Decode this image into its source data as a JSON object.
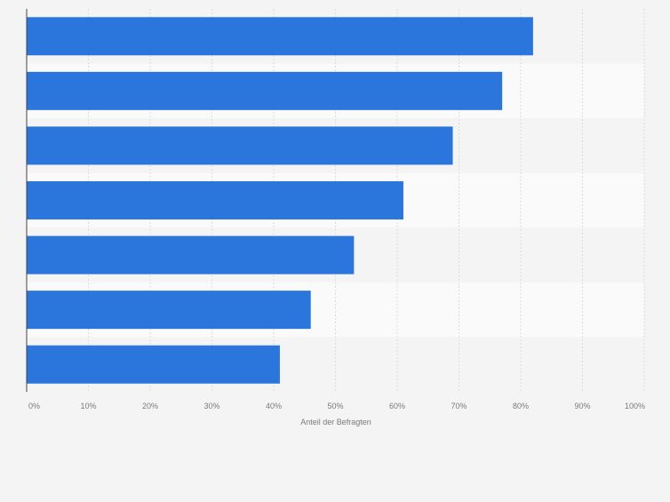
{
  "chart_data": {
    "type": "bar",
    "orientation": "horizontal",
    "categories": [
      "",
      "",
      "",
      "",
      "",
      "",
      ""
    ],
    "values": [
      82,
      77,
      69,
      61,
      53,
      46,
      41
    ],
    "title": "",
    "xlabel": "Anteil der Befragten",
    "ylabel": "",
    "xlim": [
      0,
      100
    ],
    "x_ticks": [
      "0%",
      "10%",
      "20%",
      "30%",
      "40%",
      "50%",
      "60%",
      "70%",
      "80%",
      "90%",
      "100%"
    ],
    "grid": "vertical",
    "legend": "none"
  },
  "colors": {
    "bar": "#2a76dd",
    "background": "#f4f4f4",
    "band_light": "#fafafa",
    "band_dark": "#f4f4f4",
    "grid": "#dcdcdc",
    "axis": "#444444",
    "label": "#7a7a7a"
  }
}
